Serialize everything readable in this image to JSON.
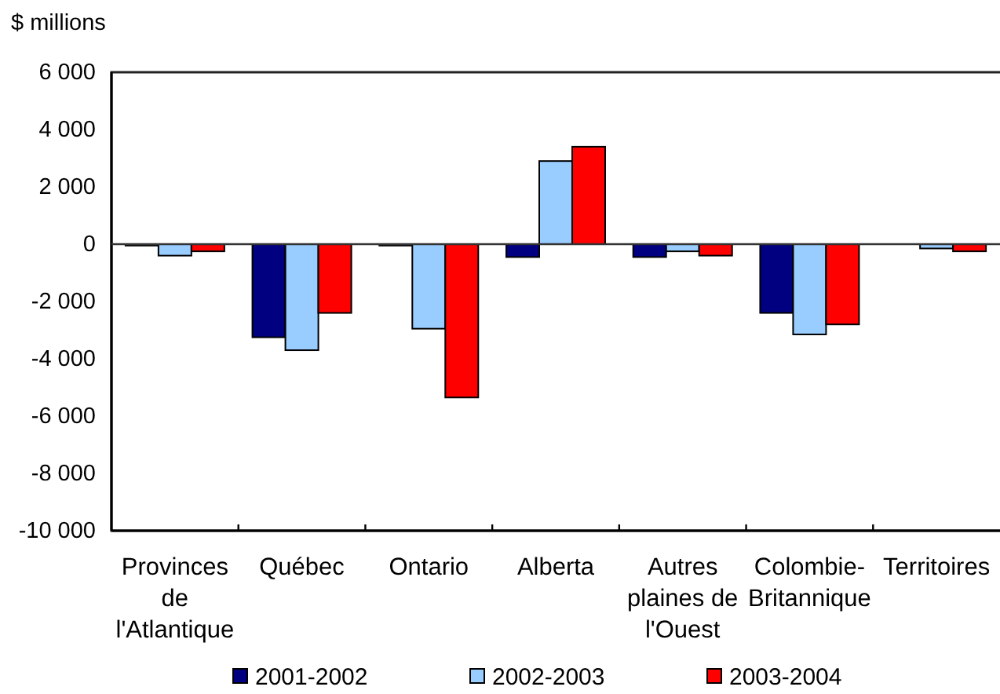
{
  "chart_data": {
    "type": "bar",
    "ylabel": "$ millions",
    "categories": [
      "Provinces de l'Atlantique",
      "Québec",
      "Ontario",
      "Alberta",
      "Autres plaines de l'Ouest",
      "Colombie-Britannique",
      "Territoires"
    ],
    "series": [
      {
        "name": "2001-2002",
        "color": "#000080",
        "values": [
          -50,
          -3250,
          -50,
          -450,
          -450,
          -2400,
          null
        ]
      },
      {
        "name": "2002-2003",
        "color": "#99ccff",
        "values": [
          -400,
          -3700,
          -2950,
          2900,
          -250,
          -3150,
          -150
        ]
      },
      {
        "name": "2003-2004",
        "color": "#ff0000",
        "values": [
          -250,
          -2400,
          -5350,
          3400,
          -400,
          -2800,
          -250
        ]
      }
    ],
    "ylim": [
      -10000,
      6000
    ],
    "yticks": [
      {
        "value": -10000,
        "label": "-10 000"
      },
      {
        "value": -8000,
        "label": "-8 000"
      },
      {
        "value": -6000,
        "label": "-6 000"
      },
      {
        "value": -4000,
        "label": "-4 000"
      },
      {
        "value": -2000,
        "label": "-2 000"
      },
      0,
      {
        "value": 2000,
        "label": "2 000"
      },
      {
        "value": 4000,
        "label": "4 000"
      },
      {
        "value": 6000,
        "label": "6 000"
      }
    ],
    "ref_lines": [
      {
        "axis": "y",
        "value": 0,
        "color": "#333333"
      }
    ],
    "legend": "bottom"
  }
}
